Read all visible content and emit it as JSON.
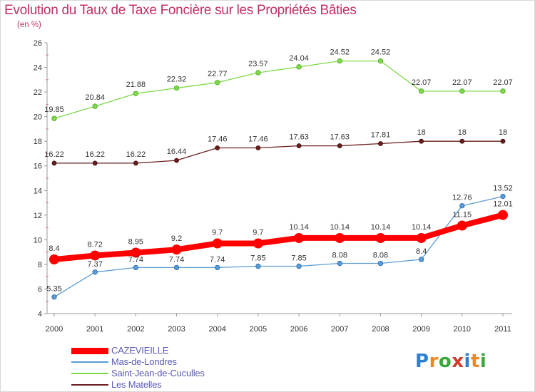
{
  "chart_data": {
    "type": "line",
    "title": "Evolution du Taux de Taxe Foncière sur les Propriétés Bâties",
    "subtitle": "(en %)",
    "xlabel": "",
    "ylabel": "",
    "x": [
      "2000",
      "2001",
      "2002",
      "2003",
      "2004",
      "2005",
      "2006",
      "2007",
      "2008",
      "2009",
      "2010",
      "2011"
    ],
    "ylim": [
      4,
      26
    ],
    "yticks": [
      "4",
      "6",
      "8",
      "10",
      "12",
      "14",
      "16",
      "18",
      "20",
      "22",
      "24",
      "26"
    ],
    "grid": false,
    "legend_position": "bottom-left",
    "series": [
      {
        "name": "CAZEVIEILLE",
        "color": "#ff0000",
        "values": [
          8.4,
          8.72,
          8.95,
          9.2,
          9.7,
          9.7,
          10.14,
          10.14,
          10.14,
          10.14,
          11.15,
          12.01
        ],
        "labels": [
          "8.4",
          "8.72",
          "8.95",
          "9.2",
          "9.7",
          "9.7",
          "10.14",
          "10.14",
          "10.14",
          "10.14",
          "11.15",
          "12.01"
        ]
      },
      {
        "name": "Mas-de-Londres",
        "color": "#5b9bd5",
        "values": [
          5.35,
          7.37,
          7.74,
          7.74,
          7.74,
          7.85,
          7.85,
          8.08,
          8.08,
          8.4,
          12.76,
          13.52
        ],
        "labels": [
          "5.35",
          "7.37",
          "7.74",
          "7.74",
          "7.74",
          "7.85",
          "7.85",
          "8.08",
          "8.08",
          "8.4",
          "12.76",
          "13.52"
        ]
      },
      {
        "name": "Saint-Jean-de-Cuculles",
        "color": "#7fd94a",
        "values": [
          19.85,
          20.84,
          21.88,
          22.32,
          22.77,
          23.57,
          24.04,
          24.52,
          24.52,
          22.07,
          22.07,
          22.07
        ],
        "labels": [
          "19.85",
          "20.84",
          "21.88",
          "22.32",
          "22.77",
          "23.57",
          "24.04",
          "24.52",
          "24.52",
          "22.07",
          "22.07",
          "22.07"
        ]
      },
      {
        "name": "Les Matelles",
        "color": "#6b1e1e",
        "values": [
          16.22,
          16.22,
          16.22,
          16.44,
          17.46,
          17.46,
          17.63,
          17.63,
          17.81,
          18,
          18,
          18
        ],
        "labels": [
          "16.22",
          "16.22",
          "16.22",
          "16.44",
          "17.46",
          "17.46",
          "17.63",
          "17.63",
          "17.81",
          "18",
          "18",
          "18"
        ]
      }
    ]
  },
  "logo": {
    "letters": [
      "P",
      "r",
      "o",
      "x",
      "i",
      "t",
      "i"
    ],
    "colors": [
      "#2e7fd0",
      "#e88a2a",
      "#3aa83a",
      "#d23a2a",
      "#2e7fd0",
      "#e88a2a",
      "#3aa83a"
    ]
  }
}
